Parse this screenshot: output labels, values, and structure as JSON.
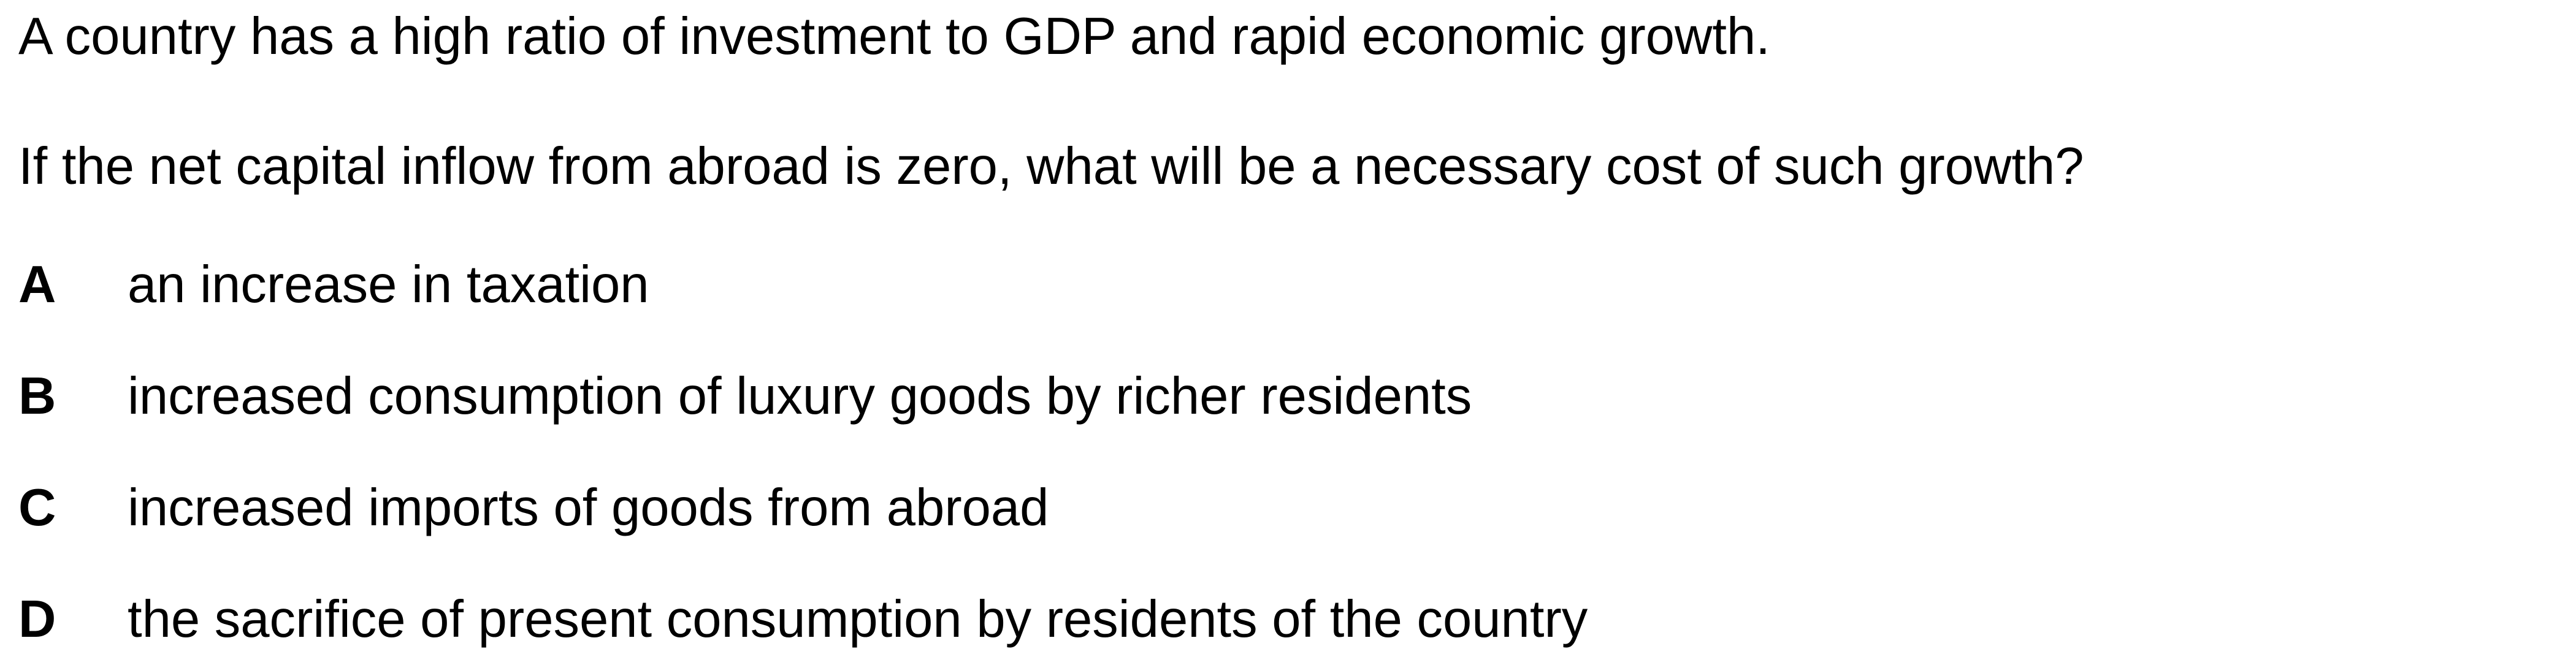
{
  "question": {
    "stem": "A country has a high ratio of investment to GDP and rapid economic growth.",
    "prompt": "If the net capital inflow from abroad is zero, what will be a necessary cost of such growth?",
    "options": [
      {
        "letter": "A",
        "text": "an increase in taxation"
      },
      {
        "letter": "B",
        "text": "increased consumption of luxury goods by richer residents"
      },
      {
        "letter": "C",
        "text": "increased imports of goods from abroad"
      },
      {
        "letter": "D",
        "text": "the sacrifice of present consumption by residents of the country"
      }
    ]
  }
}
